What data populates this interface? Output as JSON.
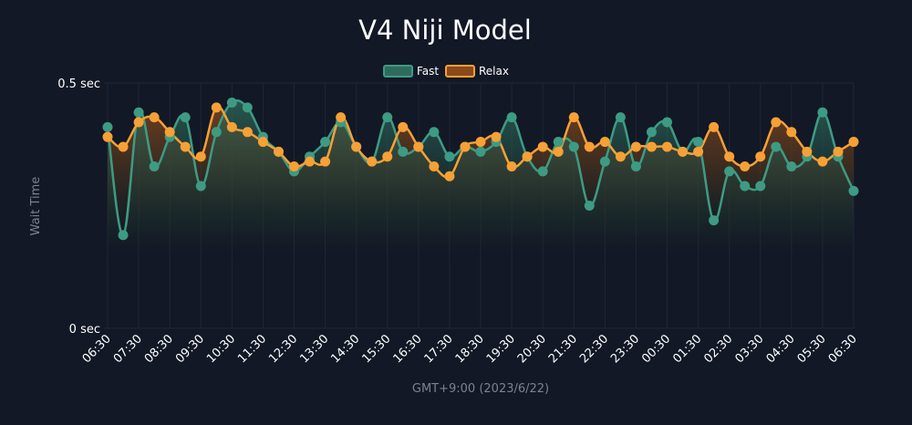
{
  "chart_data": {
    "type": "area",
    "title": "V4 Niji Model",
    "xlabel": "GMT+9:00 (2023/6/22)",
    "ylabel": "Wait Time",
    "ylim": [
      0,
      0.5
    ],
    "y_ticks": [
      {
        "value": 0,
        "label": "0 sec"
      },
      {
        "value": 0.5,
        "label": "0.5 sec"
      }
    ],
    "x_tick_labels": [
      "06:30",
      "07:30",
      "08:30",
      "09:30",
      "10:30",
      "11:30",
      "12:30",
      "13:30",
      "14:30",
      "15:30",
      "16:30",
      "17:30",
      "18:30",
      "19:30",
      "20:30",
      "21:30",
      "22:30",
      "23:30",
      "00:30",
      "01:30",
      "02:30",
      "03:30",
      "04:30",
      "05:30",
      "06:30"
    ],
    "x_tick_step": 2,
    "legend_position": "top-center",
    "grid": true,
    "series": [
      {
        "name": "Fast",
        "color": "#3d9b84",
        "values": [
          0.41,
          0.19,
          0.44,
          0.33,
          0.39,
          0.43,
          0.29,
          0.4,
          0.46,
          0.45,
          0.39,
          0.36,
          0.32,
          0.35,
          0.38,
          0.42,
          0.37,
          0.34,
          0.43,
          0.36,
          0.37,
          0.4,
          0.35,
          0.37,
          0.36,
          0.38,
          0.43,
          0.35,
          0.32,
          0.38,
          0.37,
          0.25,
          0.34,
          0.43,
          0.33,
          0.4,
          0.42,
          0.36,
          0.38,
          0.22,
          0.32,
          0.29,
          0.29,
          0.37,
          0.33,
          0.35,
          0.44,
          0.35,
          0.28
        ]
      },
      {
        "name": "Relax",
        "color": "#f7a035",
        "values": [
          0.39,
          0.37,
          0.42,
          0.43,
          0.4,
          0.37,
          0.35,
          0.45,
          0.41,
          0.4,
          0.38,
          0.36,
          0.33,
          0.34,
          0.34,
          0.43,
          0.37,
          0.34,
          0.35,
          0.41,
          0.37,
          0.33,
          0.31,
          0.37,
          0.38,
          0.39,
          0.33,
          0.35,
          0.37,
          0.36,
          0.43,
          0.37,
          0.38,
          0.35,
          0.37,
          0.37,
          0.37,
          0.36,
          0.36,
          0.41,
          0.35,
          0.33,
          0.35,
          0.42,
          0.4,
          0.36,
          0.34,
          0.36,
          0.38
        ]
      }
    ]
  }
}
